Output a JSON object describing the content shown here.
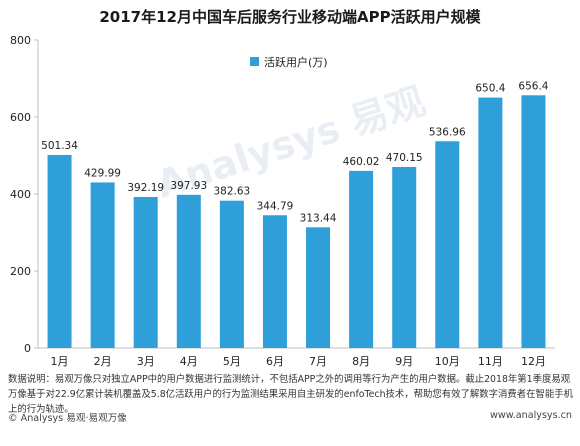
{
  "title": "2017年12月中国车后服务行业移动端APP活跃用户规模",
  "watermark": "Analysys 易观",
  "note": "数据说明：易观万像只对独立APP中的用户数据进行监测统计，不包括APP之外的调用等行为产生的用户数据。截止2018年第1季度易观万像基于对22.9亿累计装机覆盖及5.8亿活跃用户的行为监测结果采用自主研发的enfoTech技术，帮助您有效了解数字消费者在智能手机上的行为轨迹。",
  "footer_left": "© Analysys 易观·易观万像",
  "footer_right": "www.analysys.cn",
  "colors": {
    "bar": "#2e9fd9",
    "axis": "#bfbfbf"
  },
  "chart_data": {
    "type": "bar",
    "title": "2017年12月中国车后服务行业移动端APP活跃用户规模",
    "categories": [
      "1月",
      "2月",
      "3月",
      "4月",
      "5月",
      "6月",
      "7月",
      "8月",
      "9月",
      "10月",
      "11月",
      "12月"
    ],
    "series": [
      {
        "name": "活跃用户(万)",
        "values": [
          501.34,
          429.99,
          392.19,
          397.93,
          382.63,
          344.79,
          313.44,
          460.02,
          470.15,
          536.96,
          650.4,
          656.4
        ]
      }
    ],
    "ylim": [
      0,
      800
    ],
    "yticks": [
      0,
      200,
      400,
      600,
      800
    ],
    "grid": false,
    "legend": "top-left"
  }
}
